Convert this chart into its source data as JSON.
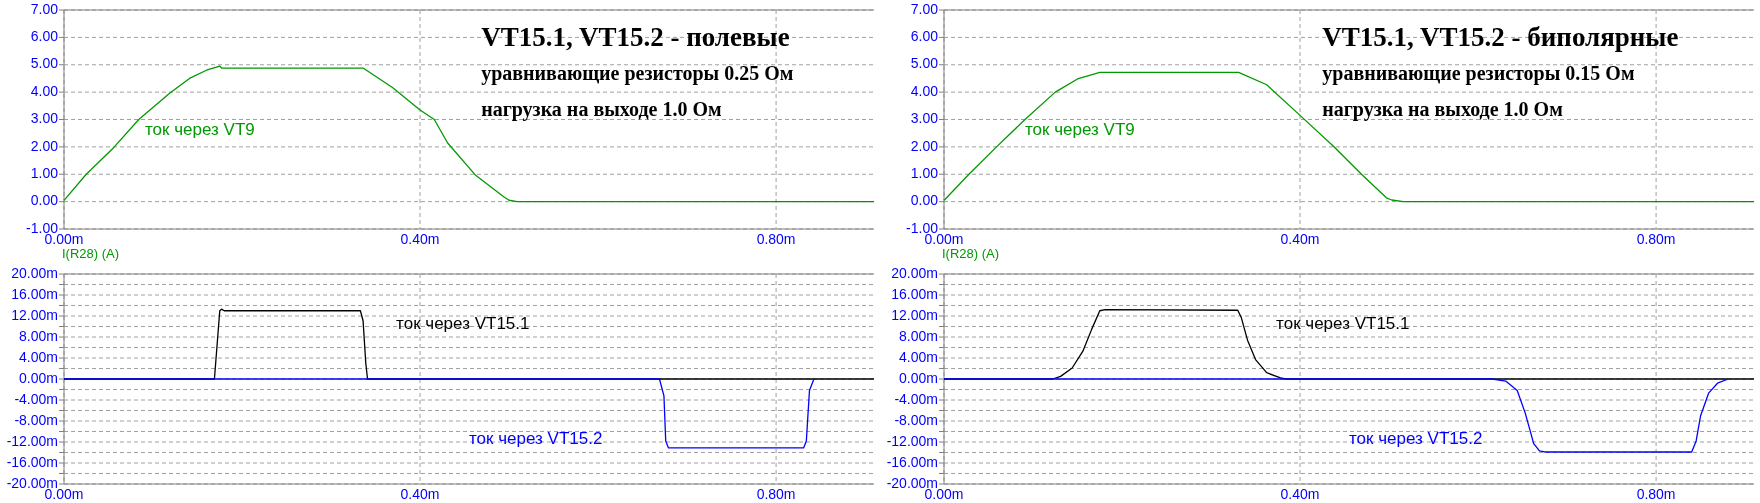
{
  "chart_data": [
    {
      "type": "line",
      "title": "VT15.1, VT15.2 - полевые",
      "subtitle": "уравнивающие резисторы 0.25 Ом",
      "annotations": [
        "нагрузка на выходе 1.0 Ом",
        "I(R28) (A)"
      ],
      "xlim": [
        0,
        0.91
      ],
      "xticks": [
        {
          "value": 0,
          "label": "0.00m"
        },
        {
          "value": 0.4,
          "label": "0.40m"
        },
        {
          "value": 0.8,
          "label": "0.80m"
        }
      ],
      "ylim": [
        -1,
        7
      ],
      "yticks": [
        {
          "value": -1,
          "label": "-1.00"
        },
        {
          "value": 0,
          "label": "0.00"
        },
        {
          "value": 1,
          "label": "1.00"
        },
        {
          "value": 2,
          "label": "2.00"
        },
        {
          "value": 3,
          "label": "3.00"
        },
        {
          "value": 4,
          "label": "4.00"
        },
        {
          "value": 5,
          "label": "5.00"
        },
        {
          "value": 6,
          "label": "6.00"
        },
        {
          "value": 7,
          "label": "7.00"
        }
      ],
      "grid": true,
      "series": [
        {
          "name": "ток через VT9",
          "color": "#009900",
          "x": [
            0,
            0.001,
            0.025,
            0.056,
            0.084,
            0.119,
            0.141,
            0.16,
            0.175,
            0.177,
            0.2,
            0.336,
            0.369,
            0.4,
            0.416,
            0.431,
            0.4625,
            0.494,
            0.5,
            0.509,
            0.91
          ],
          "values": [
            0.05,
            0.08,
            1.0,
            1.98,
            3.0,
            3.97,
            4.5,
            4.8,
            4.95,
            4.88,
            4.88,
            4.88,
            4.17,
            3.35,
            3.0,
            2.14,
            0.96,
            0.18,
            0.05,
            0,
            0
          ]
        }
      ]
    },
    {
      "type": "line",
      "title": "VT15.1, VT15.2 - биполярные",
      "subtitle": "уравнивающие резисторы 0.15 Ом",
      "annotations": [
        "нагрузка на выходе 1.0 Ом",
        "I(R28) (A)"
      ],
      "xlim": [
        0,
        0.91
      ],
      "xticks": [
        {
          "value": 0,
          "label": "0.00m"
        },
        {
          "value": 0.4,
          "label": "0.40m"
        },
        {
          "value": 0.8,
          "label": "0.80m"
        }
      ],
      "ylim": [
        -1,
        7
      ],
      "yticks": [
        {
          "value": -1,
          "label": "-1.00"
        },
        {
          "value": 0,
          "label": "0.00"
        },
        {
          "value": 1,
          "label": "1.00"
        },
        {
          "value": 2,
          "label": "2.00"
        },
        {
          "value": 3,
          "label": "3.00"
        },
        {
          "value": 4,
          "label": "4.00"
        },
        {
          "value": 5,
          "label": "5.00"
        },
        {
          "value": 6,
          "label": "6.00"
        },
        {
          "value": 7,
          "label": "7.00"
        }
      ],
      "grid": true,
      "series": [
        {
          "name": "ток через VT9",
          "color": "#009900",
          "x": [
            0,
            0.001,
            0.028,
            0.059,
            0.091,
            0.125,
            0.15,
            0.175,
            0.331,
            0.3625,
            0.4,
            0.4375,
            0.469,
            0.497,
            0.503,
            0.516,
            0.91
          ],
          "values": [
            0.05,
            0.08,
            1.0,
            2.0,
            3.0,
            4.0,
            4.48,
            4.72,
            4.72,
            4.27,
            3.15,
            2.02,
            1.0,
            0.14,
            0.06,
            0,
            0
          ]
        }
      ]
    },
    {
      "type": "line",
      "xlim": [
        0,
        0.91
      ],
      "xticks": [
        {
          "value": 0,
          "label": "0.00m"
        },
        {
          "value": 0.4,
          "label": "0.40m"
        },
        {
          "value": 0.8,
          "label": "0.80m"
        }
      ],
      "ylim": [
        -20,
        20
      ],
      "yticks": [
        {
          "value": -20,
          "label": "-20.00m"
        },
        {
          "value": -18,
          "label": null
        },
        {
          "value": -16,
          "label": "-16.00m"
        },
        {
          "value": -14,
          "label": null
        },
        {
          "value": -12,
          "label": "-12.00m"
        },
        {
          "value": -10,
          "label": null
        },
        {
          "value": -8,
          "label": "-8.00m"
        },
        {
          "value": -6,
          "label": null
        },
        {
          "value": -4,
          "label": "-4.00m"
        },
        {
          "value": -2,
          "label": null
        },
        {
          "value": 0,
          "label": "0.00m"
        },
        {
          "value": 2,
          "label": null
        },
        {
          "value": 4,
          "label": "4.00m"
        },
        {
          "value": 6,
          "label": null
        },
        {
          "value": 8,
          "label": "8.00m"
        },
        {
          "value": 10,
          "label": null
        },
        {
          "value": 12,
          "label": "12.00m"
        },
        {
          "value": 14,
          "label": null
        },
        {
          "value": 16,
          "label": "16.00m"
        },
        {
          "value": 18,
          "label": null
        },
        {
          "value": 20,
          "label": "20.00m"
        }
      ],
      "grid": true,
      "series": [
        {
          "name": "ток через VT15.1",
          "color": "#000000",
          "x": [
            0,
            0.169,
            0.175,
            0.177,
            0.18,
            0.333,
            0.336,
            0.339,
            0.341,
            0.91
          ],
          "values": [
            0,
            0,
            13.0,
            13.3,
            13.0,
            13.0,
            11.1,
            3.1,
            0,
            0
          ]
        },
        {
          "name": "ток через VT15.2",
          "color": "#0000ff",
          "x": [
            0,
            0.669,
            0.674,
            0.676,
            0.679,
            0.831,
            0.834,
            0.8375,
            0.8425
          ],
          "values": [
            0,
            0,
            -3.2,
            -11.8,
            -13.1,
            -13.1,
            -11.8,
            -2.2,
            0
          ]
        }
      ]
    },
    {
      "type": "line",
      "xlim": [
        0,
        0.91
      ],
      "xticks": [
        {
          "value": 0,
          "label": "0.00m"
        },
        {
          "value": 0.4,
          "label": "0.40m"
        },
        {
          "value": 0.8,
          "label": "0.80m"
        }
      ],
      "ylim": [
        -20,
        20
      ],
      "yticks": [
        {
          "value": -20,
          "label": "-20.00m"
        },
        {
          "value": -18,
          "label": null
        },
        {
          "value": -16,
          "label": "-16.00m"
        },
        {
          "value": -14,
          "label": null
        },
        {
          "value": -12,
          "label": "-12.00m"
        },
        {
          "value": -10,
          "label": null
        },
        {
          "value": -8,
          "label": "-8.00m"
        },
        {
          "value": -6,
          "label": null
        },
        {
          "value": -4,
          "label": "-4.00m"
        },
        {
          "value": -2,
          "label": null
        },
        {
          "value": 0,
          "label": "0.00m"
        },
        {
          "value": 2,
          "label": null
        },
        {
          "value": 4,
          "label": "4.00m"
        },
        {
          "value": 6,
          "label": null
        },
        {
          "value": 8,
          "label": "8.00m"
        },
        {
          "value": 10,
          "label": null
        },
        {
          "value": 12,
          "label": "12.00m"
        },
        {
          "value": 14,
          "label": null
        },
        {
          "value": 16,
          "label": "16.00m"
        },
        {
          "value": 18,
          "label": null
        },
        {
          "value": 20,
          "label": "20.00m"
        }
      ],
      "grid": true,
      "series": [
        {
          "name": "ток через VT15.1",
          "color": "#000000",
          "x": [
            0,
            0.122,
            0.131,
            0.144,
            0.156,
            0.166,
            0.175,
            0.181,
            0.33,
            0.334,
            0.341,
            0.35,
            0.3625,
            0.378,
            0.384,
            0.91
          ],
          "values": [
            0,
            0,
            0.5,
            2.1,
            5.3,
            9.5,
            13.0,
            13.2,
            13.1,
            11.7,
            7.4,
            3.7,
            1.2,
            0.2,
            0,
            0
          ]
        },
        {
          "name": "ток через VT15.2",
          "color": "#0000ff",
          "x": [
            0,
            0.616,
            0.631,
            0.644,
            0.653,
            0.6625,
            0.669,
            0.675,
            0.84,
            0.845,
            0.85,
            0.859,
            0.869,
            0.881
          ],
          "values": [
            0,
            0,
            -0.4,
            -2.2,
            -6.5,
            -12.3,
            -13.7,
            -13.9,
            -13.9,
            -11.8,
            -7.0,
            -2.7,
            -0.8,
            0
          ]
        }
      ]
    }
  ]
}
